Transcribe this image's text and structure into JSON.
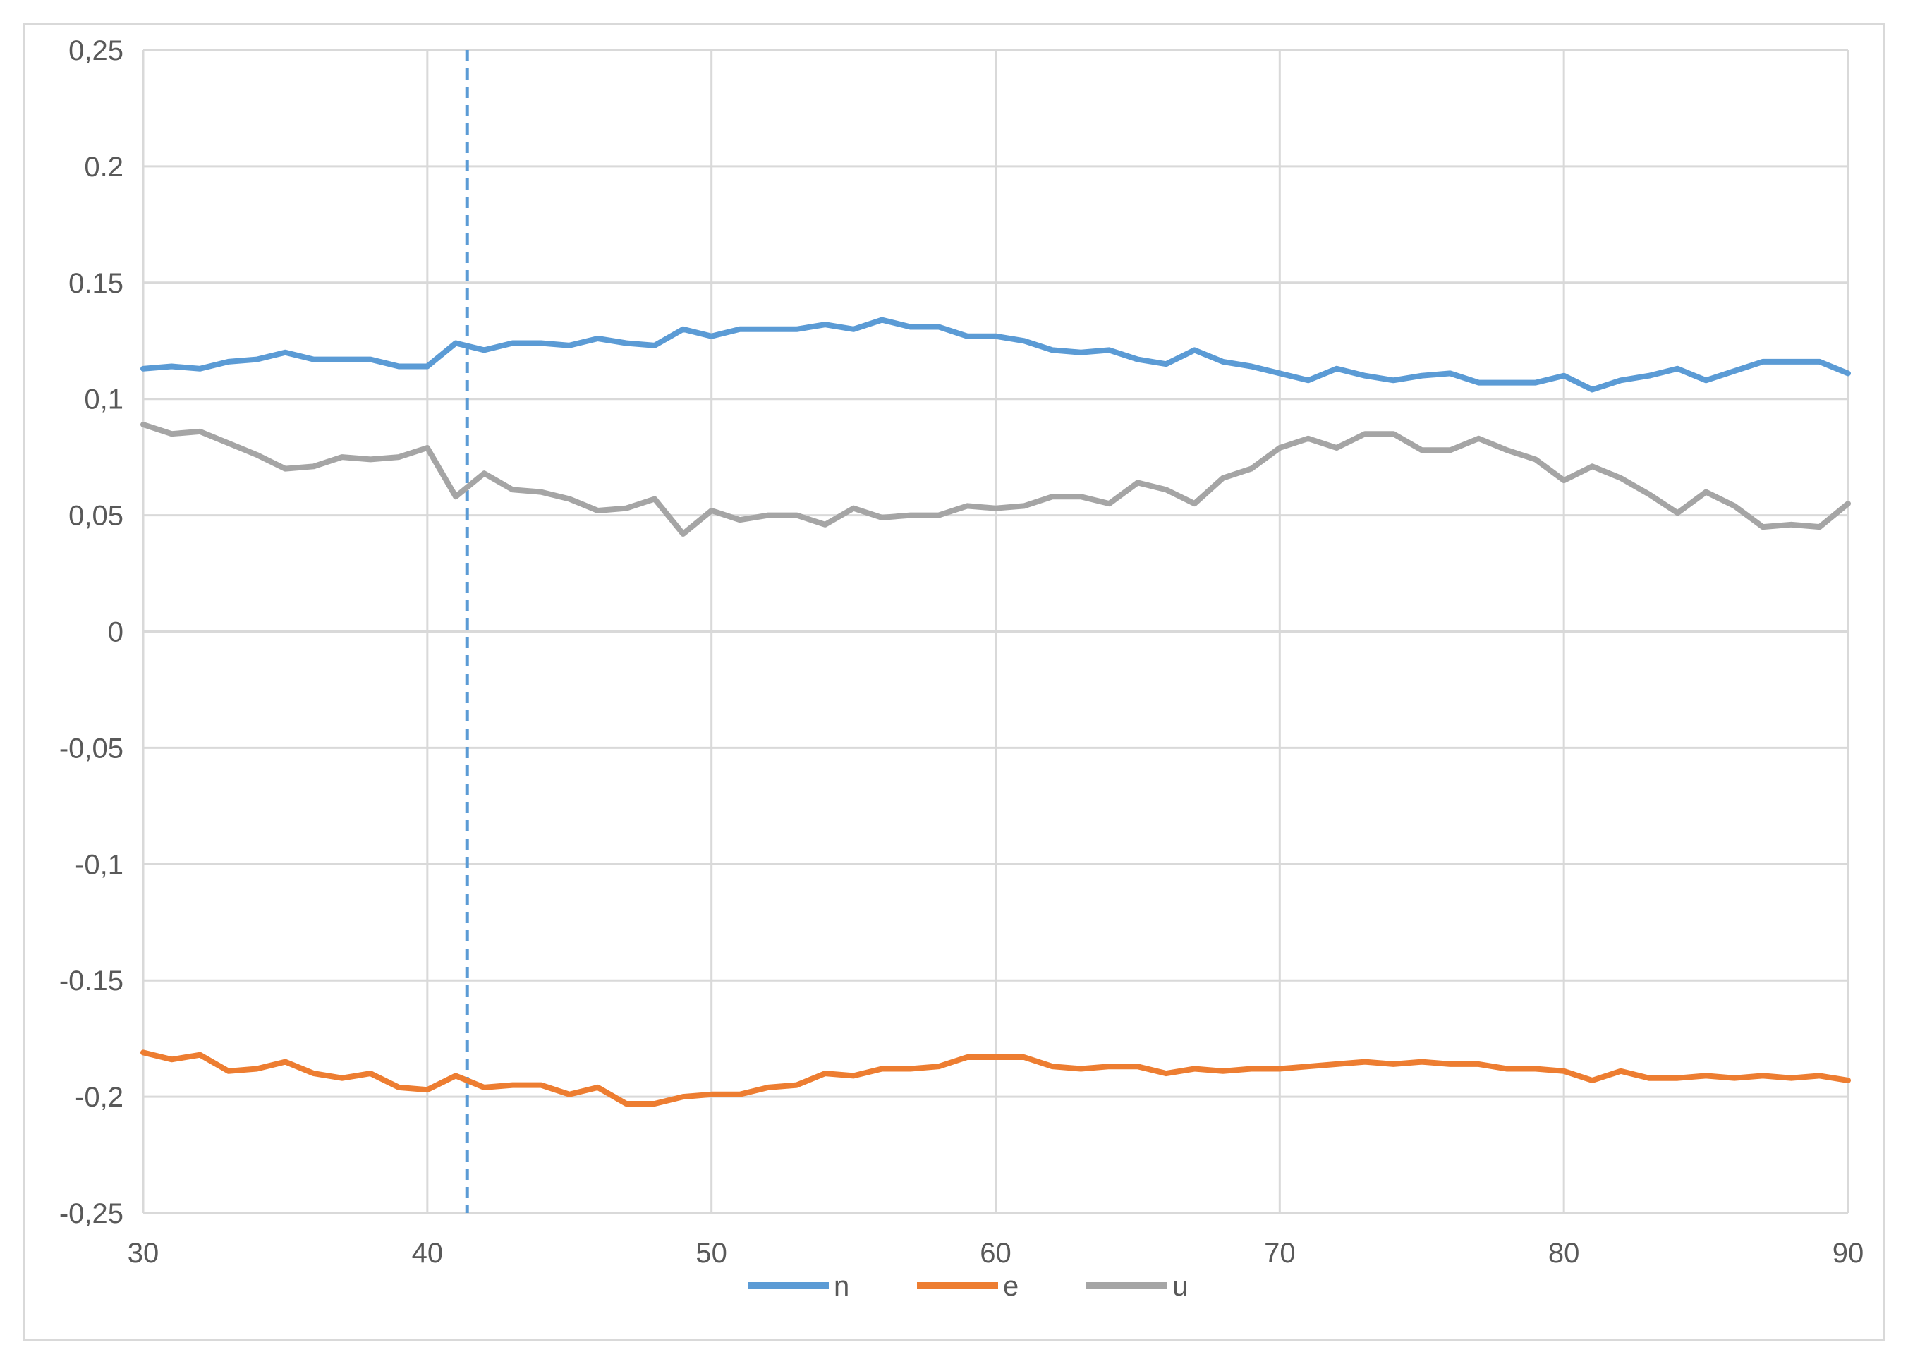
{
  "chart_data": {
    "type": "line",
    "title": "",
    "xlabel": "",
    "ylabel": "",
    "xlim": [
      30,
      90
    ],
    "ylim": [
      -0.25,
      0.25
    ],
    "x_ticks": [
      30,
      40,
      50,
      60,
      70,
      80,
      90
    ],
    "x_tick_labels": [
      "30",
      "40",
      "50",
      "60",
      "70",
      "80",
      "90"
    ],
    "y_ticks": [
      0.25,
      0.2,
      0.15,
      0.1,
      0.05,
      0,
      -0.05,
      -0.1,
      -0.15,
      -0.2,
      -0.25
    ],
    "y_tick_labels": [
      "0,25",
      "0.2",
      "0.15",
      "0,1",
      "0,05",
      "0",
      "-0,05",
      "-0,1",
      "-0.15",
      "-0,2",
      "-0,25"
    ],
    "grid": true,
    "legend_position": "bottom",
    "vertical_marker": {
      "x": 41.4,
      "style": "dashed",
      "color": "#5b9bd5"
    },
    "x": [
      30,
      31,
      32,
      33,
      34,
      35,
      36,
      37,
      38,
      39,
      40,
      41,
      42,
      43,
      44,
      45,
      46,
      47,
      48,
      49,
      50,
      51,
      52,
      53,
      54,
      55,
      56,
      57,
      58,
      59,
      60,
      61,
      62,
      63,
      64,
      65,
      66,
      67,
      68,
      69,
      70,
      71,
      72,
      73,
      74,
      75,
      76,
      77,
      78,
      79,
      80,
      81,
      82,
      83,
      84,
      85,
      86,
      87,
      88,
      89,
      90
    ],
    "series": [
      {
        "name": "n",
        "color": "#5b9bd5",
        "values": [
          0.113,
          0.114,
          0.113,
          0.116,
          0.117,
          0.12,
          0.117,
          0.117,
          0.117,
          0.114,
          0.114,
          0.124,
          0.121,
          0.124,
          0.124,
          0.123,
          0.126,
          0.124,
          0.123,
          0.13,
          0.127,
          0.13,
          0.13,
          0.13,
          0.132,
          0.13,
          0.134,
          0.131,
          0.131,
          0.127,
          0.127,
          0.125,
          0.121,
          0.12,
          0.121,
          0.117,
          0.115,
          0.121,
          0.116,
          0.114,
          0.111,
          0.108,
          0.113,
          0.11,
          0.108,
          0.11,
          0.111,
          0.107,
          0.107,
          0.107,
          0.11,
          0.104,
          0.108,
          0.11,
          0.113,
          0.108,
          0.112,
          0.116,
          0.116,
          0.116,
          0.111
        ]
      },
      {
        "name": "e",
        "color": "#ed7d31",
        "values": [
          -0.181,
          -0.184,
          -0.182,
          -0.189,
          -0.188,
          -0.185,
          -0.19,
          -0.192,
          -0.19,
          -0.196,
          -0.197,
          -0.191,
          -0.196,
          -0.195,
          -0.195,
          -0.199,
          -0.196,
          -0.203,
          -0.203,
          -0.2,
          -0.199,
          -0.199,
          -0.196,
          -0.195,
          -0.19,
          -0.191,
          -0.188,
          -0.188,
          -0.187,
          -0.183,
          -0.183,
          -0.183,
          -0.187,
          -0.188,
          -0.187,
          -0.187,
          -0.19,
          -0.188,
          -0.189,
          -0.188,
          -0.188,
          -0.187,
          -0.186,
          -0.185,
          -0.186,
          -0.185,
          -0.186,
          -0.186,
          -0.188,
          -0.188,
          -0.189,
          -0.193,
          -0.189,
          -0.192,
          -0.192,
          -0.191,
          -0.192,
          -0.191,
          -0.192,
          -0.191,
          -0.193
        ]
      },
      {
        "name": "u",
        "color": "#a5a5a5",
        "values": [
          0.089,
          0.085,
          0.086,
          0.081,
          0.076,
          0.07,
          0.071,
          0.075,
          0.074,
          0.075,
          0.079,
          0.058,
          0.068,
          0.061,
          0.06,
          0.057,
          0.052,
          0.053,
          0.057,
          0.042,
          0.052,
          0.048,
          0.05,
          0.05,
          0.046,
          0.053,
          0.049,
          0.05,
          0.05,
          0.054,
          0.053,
          0.054,
          0.058,
          0.058,
          0.055,
          0.064,
          0.061,
          0.055,
          0.066,
          0.07,
          0.079,
          0.083,
          0.079,
          0.085,
          0.085,
          0.078,
          0.078,
          0.083,
          0.078,
          0.074,
          0.065,
          0.071,
          0.066,
          0.059,
          0.051,
          0.06,
          0.054,
          0.045,
          0.046,
          0.045,
          0.055
        ]
      }
    ]
  }
}
